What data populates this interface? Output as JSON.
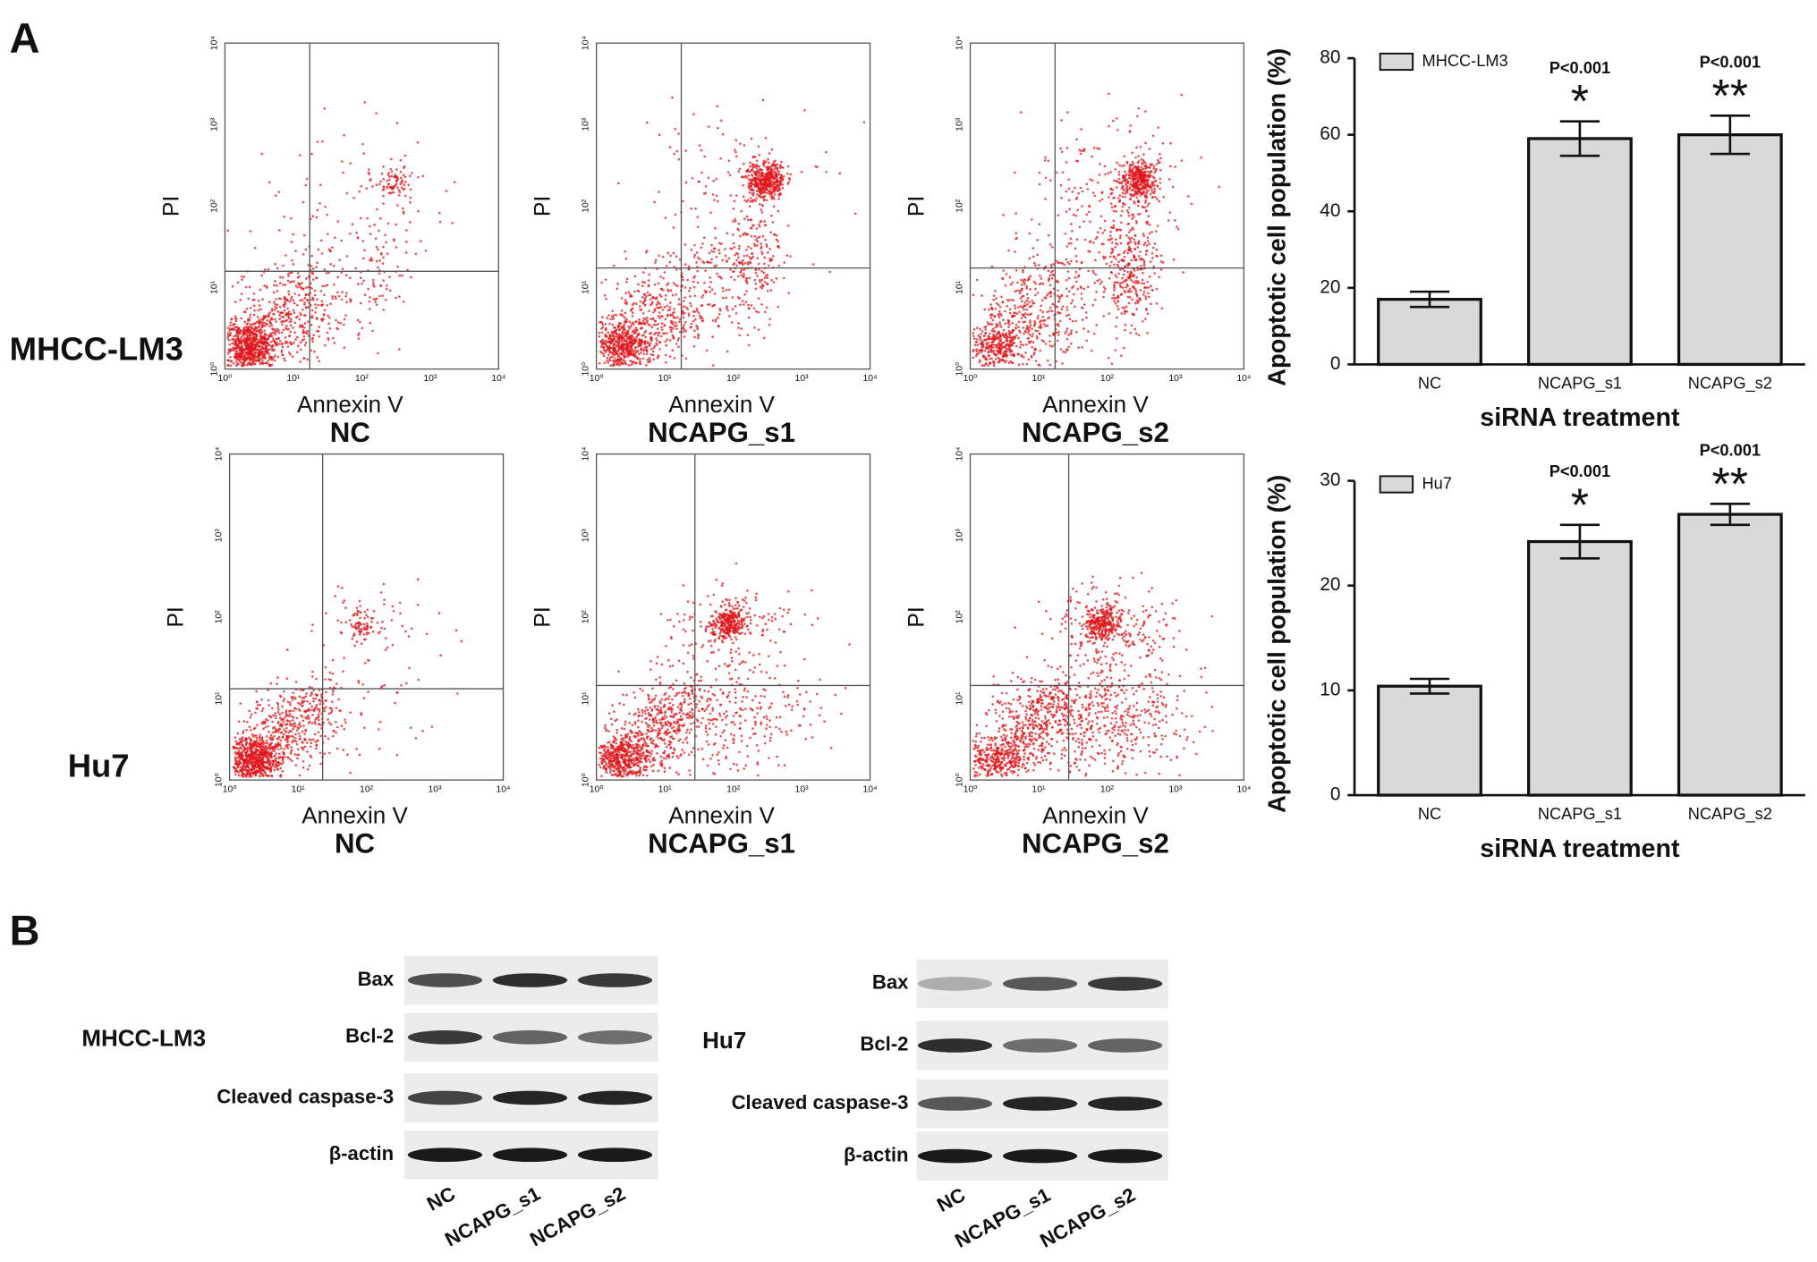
{
  "panel_labels": [
    "A",
    "B"
  ],
  "flow": {
    "x_label": "Annexin V",
    "y_label": "PI",
    "ticks": [
      "10⁰",
      "10¹",
      "10²",
      "10³",
      "10⁴"
    ],
    "rows": [
      "MHCC-LM3",
      "Hu7"
    ],
    "columns": [
      "NC",
      "NCAPG_s1",
      "NCAPG_s2"
    ]
  },
  "chart_data": [
    {
      "type": "bar",
      "y_label": "Apoptotic cell population (%)",
      "x_label": "siRNA treatment",
      "categories": [
        "NC",
        "NCAPG_s1",
        "NCAPG_s2"
      ],
      "series": [
        {
          "name": "MHCC-LM3",
          "color": "#d9d9d9",
          "values": [
            17,
            59,
            60
          ],
          "errors": [
            2,
            4.5,
            5
          ]
        }
      ],
      "p_values": [
        null,
        "P<0.001",
        "P<0.001"
      ],
      "significance": [
        null,
        "*",
        "**"
      ],
      "ylim": [
        0,
        80
      ],
      "yticks": [
        0,
        20,
        40,
        60,
        80
      ],
      "legend": "top-left"
    },
    {
      "type": "bar",
      "y_label": "Apoptotic cell population (%)",
      "x_label": "siRNA treatment",
      "categories": [
        "NC",
        "NCAPG_s1",
        "NCAPG_s2"
      ],
      "series": [
        {
          "name": "Hu7",
          "color": "#d9d9d9",
          "values": [
            10.4,
            24.2,
            26.8
          ],
          "errors": [
            0.7,
            1.6,
            1.0
          ]
        }
      ],
      "p_values": [
        null,
        "P<0.001",
        "P<0.001"
      ],
      "significance": [
        null,
        "*",
        "**"
      ],
      "ylim": [
        0,
        30
      ],
      "yticks": [
        0,
        10,
        20,
        30
      ],
      "legend": "top-left"
    }
  ],
  "western": {
    "rows": [
      "Bax",
      "Bcl-2",
      "Cleaved caspase-3",
      "β-actin"
    ],
    "cell_lines": [
      "MHCC-LM3",
      "Hu7"
    ],
    "lanes": [
      "NC",
      "NCAPG_s1",
      "NCAPG_s2"
    ]
  }
}
